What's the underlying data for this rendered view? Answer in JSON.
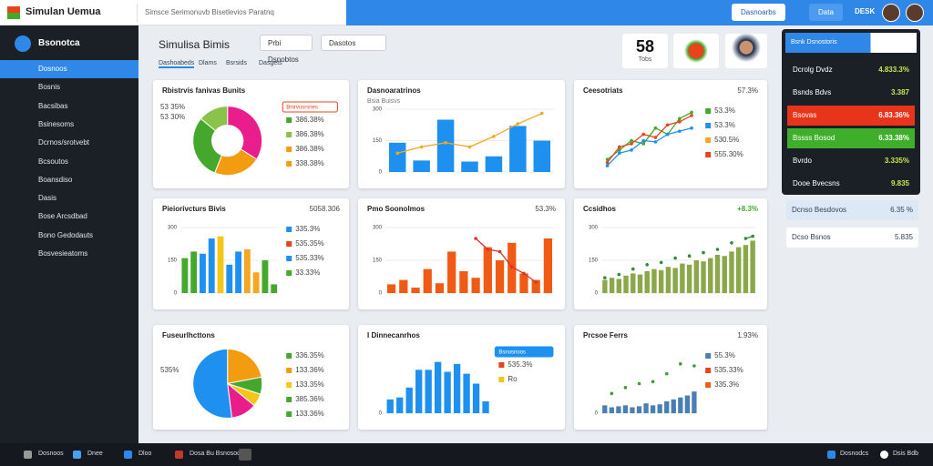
{
  "header": {
    "app_name": "Simulan Uemua",
    "search": "Simsce Serimonuvb Bisetlevios Paratnq",
    "buttons": [
      "Dasnoarbs",
      "Data"
    ],
    "user": "DESK"
  },
  "sidebar": {
    "title": "Bsonotca",
    "items": [
      "Dosnoos",
      "Bosnis",
      "Bacsibas",
      "Bsinesoms",
      "Dcrnos/srotvebt",
      "Bcsoutos",
      "Boansdiso",
      "Dasis",
      "Bose Arcsdbad",
      "Bono Gedodauts",
      "Bosvesieatoms"
    ]
  },
  "page": {
    "title": "Simulisa Bimis",
    "buttons": [
      "Prbi Dsnobtos",
      "Dasotos"
    ],
    "tabs": [
      "Dashoabeds",
      "Dlams",
      "Bsrsids",
      "Dasgets"
    ],
    "stat_value": "58",
    "stat_label": "Tobs"
  },
  "panels": [
    {
      "title": "Rbistrvis fanivas Bunits",
      "type": "donut",
      "values": [
        34,
        22,
        30,
        14
      ],
      "colors": [
        "#e91e8c",
        "#f39c12",
        "#43a82b",
        "#8bc34a"
      ],
      "side": [
        "53 35%",
        "53 30%"
      ],
      "badge": "Bnirvusrsnes",
      "legend": [
        {
          "text": "386.38%",
          "color": "#43a82b"
        },
        {
          "text": "386.38%",
          "color": "#8bc34a"
        },
        {
          "text": "386.38%",
          "color": "#f39c12"
        },
        {
          "text": "338.38%",
          "color": "#f39c12"
        }
      ]
    },
    {
      "title": "Dasnoaratrinos",
      "subtitle": "Bsia Buisvs",
      "type": "bars",
      "ylim": [
        0,
        300
      ],
      "yticks": [
        0,
        150,
        300
      ],
      "values": [
        140,
        55,
        250,
        50,
        75,
        220,
        150
      ],
      "color": "#1e90f0",
      "line": [
        90,
        120,
        140,
        120,
        170,
        230,
        280
      ],
      "line_color": "#f5a623"
    },
    {
      "title": "Ceesotriats",
      "corner": "57.3%",
      "type": "lines",
      "ylim": [
        0,
        100
      ],
      "series": [
        {
          "color": "#43a82b",
          "values": [
            20,
            35,
            50,
            45,
            70,
            60,
            85,
            95
          ]
        },
        {
          "color": "#e8431b",
          "values": [
            15,
            40,
            45,
            60,
            55,
            75,
            80,
            90
          ]
        },
        {
          "color": "#1e90f0",
          "values": [
            10,
            30,
            35,
            50,
            48,
            60,
            65,
            70
          ]
        }
      ],
      "legend": [
        {
          "text": "53.3%",
          "color": "#43a82b"
        },
        {
          "text": "53.3%",
          "color": "#1e90f0"
        },
        {
          "text": "530.5%",
          "color": "#f5a623"
        },
        {
          "text": "555.30%",
          "color": "#e8431b"
        }
      ]
    },
    {
      "title": "Pieiorivcturs Bivis",
      "corner": "5058.306",
      "type": "bars",
      "ylim": [
        0,
        300
      ],
      "yticks": [
        0,
        150,
        300
      ],
      "values": [
        160,
        190,
        180,
        250,
        260,
        130,
        190,
        200,
        95,
        150,
        40
      ],
      "colors": [
        "#43a82b",
        "#43a82b",
        "#1e90f0",
        "#1e90f0",
        "#f5c518",
        "#1e90f0",
        "#1e90f0",
        "#f5a623",
        "#f5a623",
        "#43a82b",
        "#43a82b"
      ],
      "legend": [
        {
          "text": "335.3%",
          "color": "#1e90f0"
        },
        {
          "text": "535.35%",
          "color": "#e8431b"
        },
        {
          "text": "535.33%",
          "color": "#1e90f0"
        },
        {
          "text": "33.33%",
          "color": "#43a82b"
        }
      ]
    },
    {
      "title": "Pmo Soonolmos",
      "corner": "53.3%",
      "type": "bars",
      "ylim": [
        0,
        300
      ],
      "yticks": [
        0,
        150,
        300
      ],
      "values": [
        40,
        60,
        25,
        110,
        45,
        190,
        100,
        70,
        210,
        150,
        230,
        90,
        60,
        250
      ],
      "color": "#f05a14",
      "line": [
        null,
        null,
        null,
        null,
        null,
        null,
        null,
        250,
        200,
        190,
        120,
        90,
        50,
        null
      ],
      "line_color": "#d9342b"
    },
    {
      "title": "Ccsidhos",
      "corner": "+8.3%",
      "type": "bars",
      "ylim": [
        0,
        300
      ],
      "yticks": [
        0,
        150,
        300
      ],
      "values": [
        60,
        70,
        65,
        80,
        90,
        85,
        100,
        110,
        105,
        120,
        115,
        135,
        130,
        150,
        145,
        160,
        175,
        170,
        190,
        210,
        220,
        240
      ],
      "color": "#8aa84a",
      "line": [
        70,
        null,
        85,
        null,
        110,
        null,
        130,
        null,
        140,
        null,
        160,
        null,
        170,
        null,
        185,
        null,
        200,
        null,
        230,
        null,
        250,
        260
      ],
      "line_color": "#2e8b3d"
    },
    {
      "title": "Fuseurlhcttons",
      "type": "pie",
      "values": [
        22,
        8,
        6,
        12,
        52
      ],
      "colors": [
        "#f39c12",
        "#43a82b",
        "#f5c518",
        "#e91e8c",
        "#1e90f0"
      ],
      "side": [
        "535%"
      ],
      "legend": [
        {
          "text": "336.35%",
          "color": "#43a82b"
        },
        {
          "text": "133.36%",
          "color": "#f39c12"
        },
        {
          "text": "133.35%",
          "color": "#f5c518"
        },
        {
          "text": "385.36%",
          "color": "#43a82b"
        },
        {
          "text": "133.36%",
          "color": "#43a82b"
        }
      ]
    },
    {
      "title": "I Dinnecanrhos",
      "type": "bars",
      "ylim": [
        0,
        300
      ],
      "yticks": [
        0
      ],
      "values": [
        70,
        80,
        130,
        220,
        220,
        260,
        210,
        250,
        200,
        150,
        60
      ],
      "color": "#1e90f0",
      "badge": "Bsnosnoos",
      "legend": [
        {
          "text": "535.3%",
          "color": "#e8431b"
        },
        {
          "text": "Ro",
          "color": "#f5c518"
        }
      ]
    },
    {
      "title": "Prcsoe Ferrs",
      "corner": "1.93%",
      "type": "bars",
      "ylim": [
        0,
        300
      ],
      "yticks": [
        0
      ],
      "values": [
        40,
        30,
        35,
        40,
        30,
        35,
        50,
        40,
        45,
        60,
        70,
        80,
        90,
        110
      ],
      "color": "#4a7fb5",
      "line": [
        null,
        100,
        null,
        130,
        null,
        150,
        null,
        160,
        null,
        200,
        null,
        250,
        null,
        240
      ],
      "line_color": "#3e9b3a",
      "legend": [
        {
          "text": "55.3%",
          "color": "#4a7fb5"
        },
        {
          "text": "535.33%",
          "color": "#e8431b"
        },
        {
          "text": "335.3%",
          "color": "#f05a14"
        }
      ]
    }
  ],
  "right": {
    "header": "Bsnk Dsnostoris",
    "rows": [
      {
        "label": "Dcrolg Dvdz",
        "value": "4.833.3%"
      },
      {
        "label": "Bsnds Bdvs",
        "value": "3.387"
      },
      {
        "label": "Bsovas",
        "value": "6.83.36%"
      },
      {
        "label": "Bssss Bosod",
        "value": "6.33.38%"
      },
      {
        "label": "Bvrdo",
        "value": "3.335%"
      },
      {
        "label": "Dooe Bvecsns",
        "value": "9.835"
      }
    ],
    "extra": [
      {
        "label": "Dcnso Besdovos",
        "value": "6.35 %"
      },
      {
        "label": "Dcso Bsnos",
        "value": "5.835"
      }
    ]
  },
  "taskbar": {
    "items": [
      "Dosnoos",
      "Dnee",
      "Dloo",
      "Dosa Bu Bsnosooes"
    ],
    "right": [
      "Dosnodcs",
      "Dsis Bdb"
    ]
  }
}
